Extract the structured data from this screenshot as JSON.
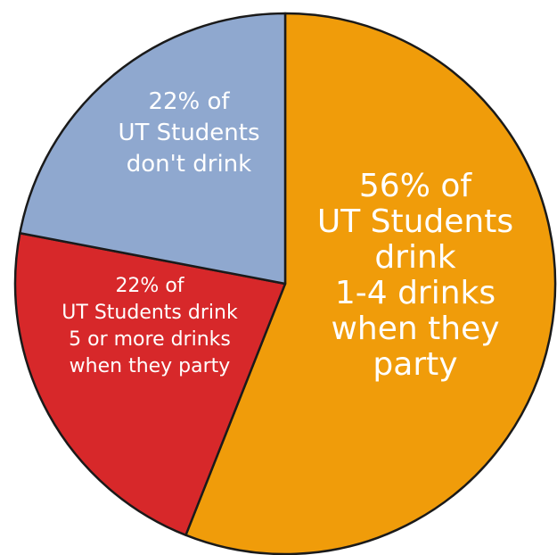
{
  "chart_data": {
    "type": "pie",
    "slices": [
      {
        "value": 56,
        "label_lines": [
          "56% of",
          "UT Students",
          "drink",
          "1-4 drinks",
          "when they",
          "party"
        ],
        "color": "#F09C0A"
      },
      {
        "value": 22,
        "label_lines": [
          "22% of",
          "UT Students drink",
          "5 or more drinks",
          "when they party"
        ],
        "color": "#D7282A"
      },
      {
        "value": 22,
        "label_lines": [
          "22% of",
          "UT Students",
          "don't drink"
        ],
        "color": "#8FA8CF"
      }
    ]
  }
}
